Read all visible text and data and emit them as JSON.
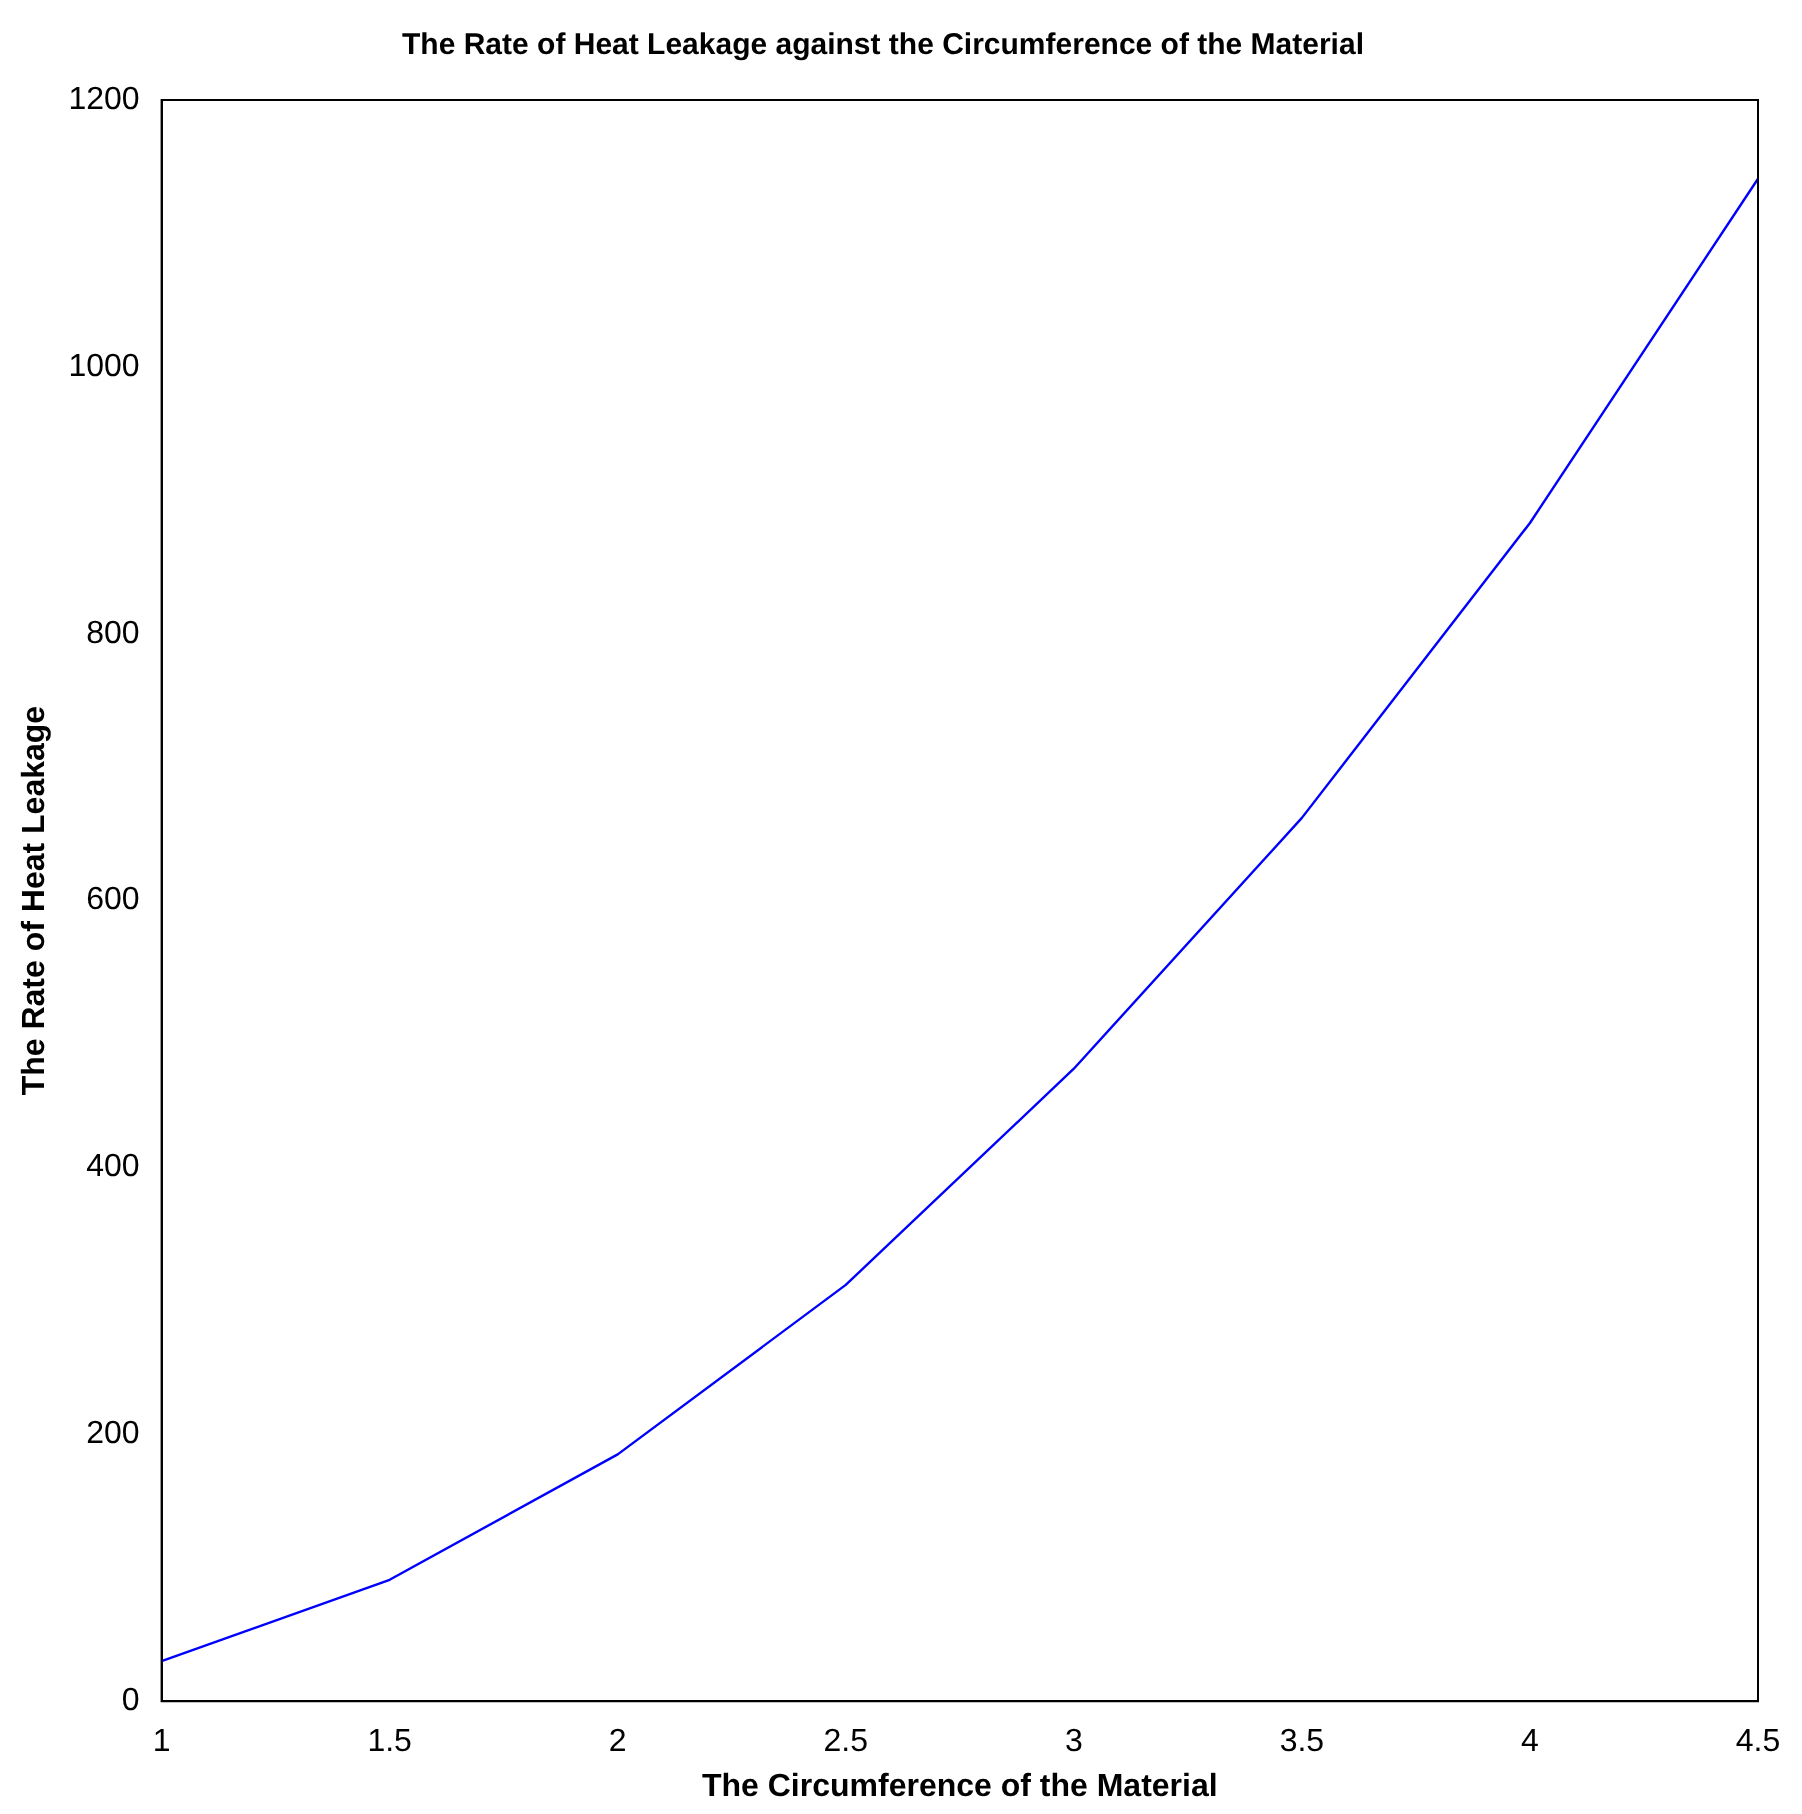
{
  "chart_data": {
    "type": "line",
    "title": "The Rate of Heat Leakage against the Circumference of the Material",
    "xlabel": "The Circumference of the Material",
    "ylabel": "The Rate of Heat Leakage",
    "x": [
      1,
      1.5,
      2,
      2.5,
      3,
      3.5,
      4,
      4.5
    ],
    "series": [
      {
        "color": "#0000ff",
        "values": [
          30,
          91,
          185,
          312,
          474,
          662,
          883,
          1141
        ]
      }
    ],
    "xlim": [
      1,
      4.5
    ],
    "xticks": [
      1,
      {
        "value": 1.5,
        "label": "1.5"
      },
      2,
      {
        "value": 2.5,
        "label": "2.5"
      },
      3,
      {
        "value": 3.5,
        "label": "3.5"
      },
      4,
      {
        "value": 4.5,
        "label": "4.5"
      }
    ],
    "ylim": [
      0,
      1200
    ],
    "yticks": [
      0,
      200,
      400,
      600,
      800,
      1000,
      1200
    ],
    "grid": false,
    "legend": false,
    "marker": "none",
    "line_style": "solid"
  }
}
